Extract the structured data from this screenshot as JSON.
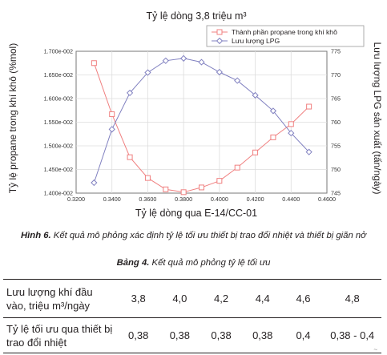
{
  "chart_data": {
    "type": "line",
    "title": "Tỷ lệ dòng 3,8 triệu m³",
    "xlabel": "Tỷ lệ dòng qua E-14/CC-01",
    "ylabel": "Tỷ lệ propane trong khí khô (%mol)",
    "y2label": "Lưu lượng LPG sản xuất (tấn/ngày)",
    "xlim": [
      0.32,
      0.46
    ],
    "ylim": [
      0.014,
      0.017
    ],
    "y2lim": [
      745,
      775
    ],
    "x_ticks": [
      "0.3200",
      "0.3400",
      "0.3600",
      "0.3800",
      "0.4000",
      "0.4200",
      "0.4400",
      "0.4600"
    ],
    "y_ticks": [
      "1.400e-002",
      "1.450e-002",
      "1.500e-002",
      "1.550e-002",
      "1.600e-002",
      "1.650e-002",
      "1.700e-002"
    ],
    "y2_ticks": [
      "745",
      "750",
      "755",
      "760",
      "765",
      "770",
      "775"
    ],
    "grid": true,
    "legend": "top-right",
    "series": [
      {
        "name": "Thành phần propane trong khí khô",
        "axis": "left",
        "color": "#f08080",
        "marker": "square",
        "x": [
          0.33,
          0.34,
          0.35,
          0.36,
          0.37,
          0.38,
          0.39,
          0.4,
          0.41,
          0.42,
          0.43,
          0.44,
          0.45
        ],
        "y": [
          0.01675,
          0.01567,
          0.01476,
          0.01432,
          0.01408,
          0.01402,
          0.01412,
          0.01426,
          0.01454,
          0.01486,
          0.01518,
          0.01546,
          0.01583
        ]
      },
      {
        "name": "Lưu lượng LPG",
        "axis": "right",
        "color": "#8080c0",
        "marker": "diamond",
        "x": [
          0.33,
          0.34,
          0.35,
          0.36,
          0.37,
          0.38,
          0.39,
          0.4,
          0.41,
          0.42,
          0.43,
          0.44,
          0.45
        ],
        "y": [
          747.2,
          758.5,
          766.2,
          770.5,
          773.0,
          773.5,
          772.7,
          770.6,
          768.8,
          765.7,
          762.4,
          757.7,
          753.7
        ]
      }
    ]
  },
  "figure_caption": {
    "label": "Hình 6.",
    "text": " Kết quả mô phỏng xác định tỷ lệ tối ưu thiết bị trao đổi nhiệt và thiết bị giãn nở"
  },
  "table_caption": {
    "label": "Bảng 4.",
    "text": " Kết quả mô phỏng tỷ lệ tối ưu"
  },
  "table": {
    "row1_label": "Lưu lượng khí đầu vào, triệu m³/ngày",
    "row1_values": [
      "3,8",
      "4,0",
      "4,2",
      "4,4",
      "4,6",
      "4,8"
    ],
    "row2_label": "Tỷ lệ tối ưu qua thiết bị trao đổi nhiệt",
    "row2_values": [
      "0,38",
      "0,38",
      "0,38",
      "0,38",
      "0,4",
      "0,38 - 0,4"
    ]
  },
  "corner_mark": "~"
}
